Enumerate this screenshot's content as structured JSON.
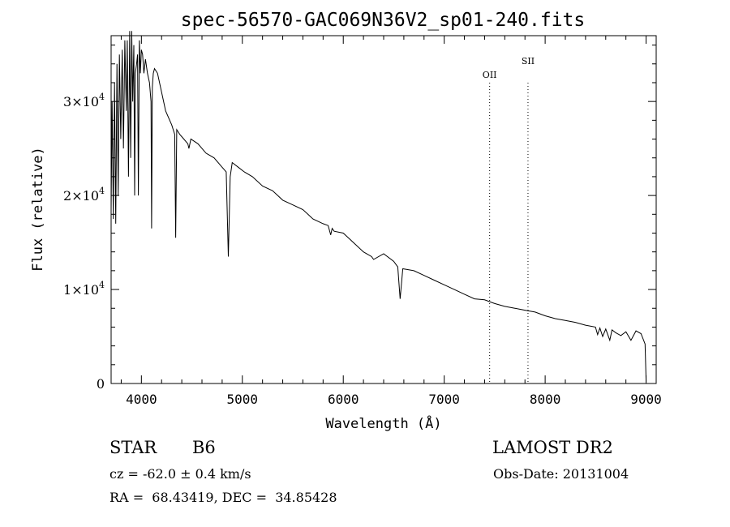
{
  "chart_data": {
    "type": "line",
    "title": "spec-56570-GAC069N36V2_sp01-240.fits",
    "xlabel": "Wavelength (Å)",
    "ylabel": "Flux (relative)",
    "xlim": [
      3700,
      9100
    ],
    "ylim": [
      0,
      37000
    ],
    "xticks": [
      4000,
      5000,
      6000,
      7000,
      8000,
      9000
    ],
    "xtick_labels": [
      "4000",
      "5000",
      "6000",
      "7000",
      "8000",
      "9000"
    ],
    "yticks": [
      0,
      10000,
      20000,
      30000
    ],
    "ytick_labels": [
      {
        "mant": "0",
        "exp": ""
      },
      {
        "mant": "1×10",
        "exp": "4"
      },
      {
        "mant": "2×10",
        "exp": "4"
      },
      {
        "mant": "3×10",
        "exp": "4"
      }
    ],
    "grid": false,
    "lines": [
      {
        "label": "OII",
        "x": 7450
      },
      {
        "label": "SII",
        "x": 7830
      }
    ],
    "series": [
      {
        "x": [
          3700,
          3710,
          3722,
          3734,
          3746,
          3758,
          3770,
          3782,
          3796,
          3810,
          3822,
          3836,
          3850,
          3860,
          3872,
          3884,
          3894,
          3904,
          3914,
          3925,
          3933,
          3940,
          3952,
          3962,
          3970,
          3980,
          3990,
          4000,
          4012,
          4025,
          4040,
          4060,
          4080,
          4095,
          4101,
          4108,
          4118,
          4130,
          4160,
          4200,
          4240,
          4300,
          4330,
          4340,
          4350,
          4380,
          4420,
          4460,
          4471,
          4490,
          4560,
          4640,
          4720,
          4800,
          4840,
          4861,
          4880,
          4900,
          4960,
          5020,
          5100,
          5200,
          5300,
          5400,
          5500,
          5600,
          5700,
          5800,
          5850,
          5875,
          5890,
          5910,
          6000,
          6100,
          6200,
          6280,
          6300,
          6400,
          6500,
          6540,
          6563,
          6590,
          6700,
          6800,
          6900,
          7000,
          7100,
          7200,
          7300,
          7400,
          7500,
          7600,
          7700,
          7800,
          7900,
          8000,
          8100,
          8200,
          8300,
          8400,
          8498,
          8520,
          8542,
          8570,
          8600,
          8640,
          8662,
          8700,
          8750,
          8800,
          8850,
          8900,
          8950,
          8990,
          9000
        ],
        "y": [
          18500,
          30000,
          17500,
          32000,
          17000,
          34000,
          20000,
          35000,
          26000,
          35500,
          25000,
          36500,
          29000,
          36500,
          22000,
          37500,
          24000,
          37500,
          30000,
          36000,
          20000,
          33000,
          34000,
          35000,
          20000,
          36500,
          33000,
          35500,
          35000,
          33000,
          34500,
          33000,
          32000,
          30000,
          16500,
          31500,
          33000,
          33500,
          33000,
          31000,
          29000,
          27500,
          26500,
          15500,
          27000,
          26500,
          26000,
          25500,
          25000,
          26000,
          25500,
          24500,
          24000,
          23000,
          22500,
          13500,
          22000,
          23500,
          23000,
          22500,
          22000,
          21000,
          20500,
          19500,
          19000,
          18500,
          17500,
          17000,
          16800,
          15800,
          16500,
          16200,
          16000,
          15000,
          14000,
          13500,
          13200,
          13800,
          13000,
          12400,
          9000,
          12200,
          12000,
          11500,
          11000,
          10500,
          10000,
          9500,
          9000,
          8900,
          8500,
          8200,
          8000,
          7800,
          7600,
          7200,
          6900,
          6700,
          6500,
          6200,
          6000,
          5200,
          5900,
          5000,
          5800,
          4600,
          5700,
          5400,
          5100,
          5500,
          4600,
          5600,
          5300,
          4200,
          200
        ]
      }
    ]
  },
  "info": {
    "class_label": "STAR",
    "subclass": "B6",
    "survey": "LAMOST DR2",
    "cz": "cz = -62.0 ± 0.4 km/s",
    "obs_date": "Obs-Date: 20131004",
    "coords": "RA =  68.43419, DEC =  34.85428"
  }
}
